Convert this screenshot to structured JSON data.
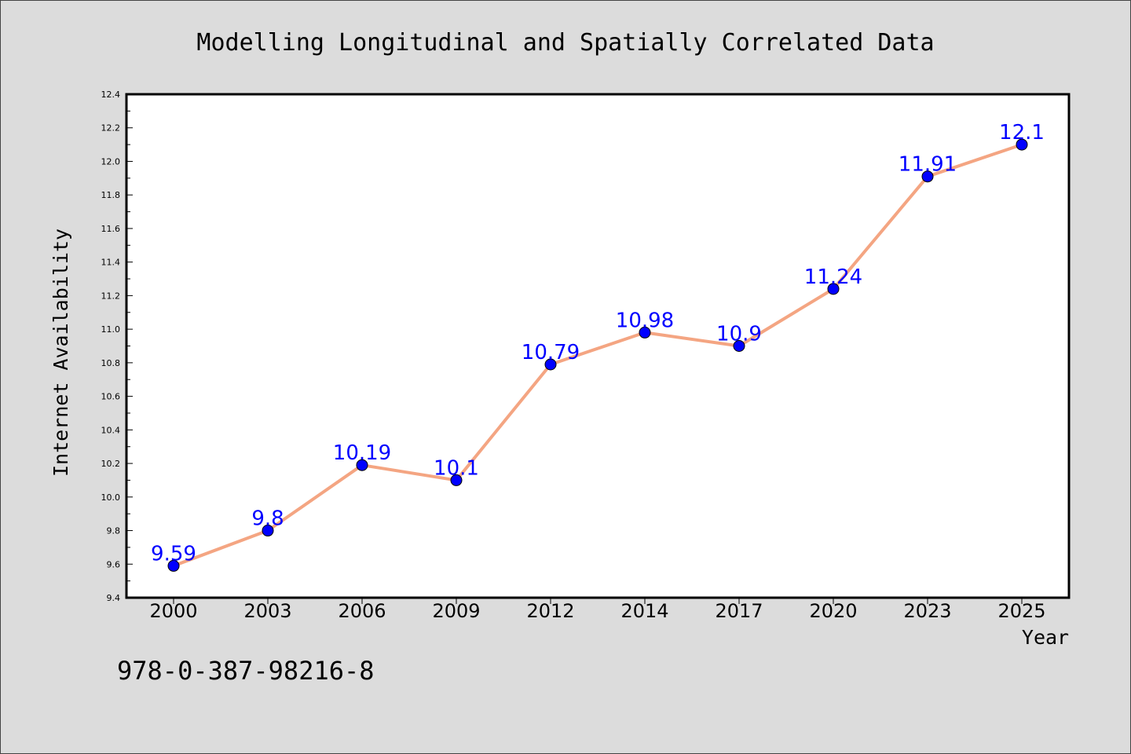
{
  "chart_data": {
    "type": "line",
    "title": "Modelling Longitudinal and Spatially Correlated Data",
    "xlabel": "Year",
    "ylabel": "Internet Availability",
    "categories": [
      "2000",
      "2003",
      "2006",
      "2009",
      "2012",
      "2014",
      "2017",
      "2020",
      "2023",
      "2025"
    ],
    "series": [
      {
        "values": [
          9.59,
          9.8,
          10.19,
          10.1,
          10.79,
          10.98,
          10.9,
          11.24,
          11.91,
          12.1
        ],
        "value_labels": [
          "9.59",
          "9.8",
          "10.19",
          "10.1",
          "10.79",
          "10.98",
          "10.9",
          "11.24",
          "11.91",
          "12.1"
        ]
      }
    ],
    "ylim": [
      9.4,
      12.4
    ],
    "yticks": [
      "9.4",
      "9.6",
      "9.8",
      "10.0",
      "10.2",
      "10.4",
      "10.6",
      "10.8",
      "11.0",
      "11.2",
      "11.4",
      "11.6",
      "11.8",
      "12.0",
      "12.2",
      "12.4"
    ],
    "grid": false,
    "colors": {
      "line": "#f4a582",
      "marker": "#0000ff",
      "label": "#0000ff",
      "background": "#dcdcdc",
      "plot_background": "#ffffff"
    }
  },
  "footer_text": "978-0-387-98216-8"
}
